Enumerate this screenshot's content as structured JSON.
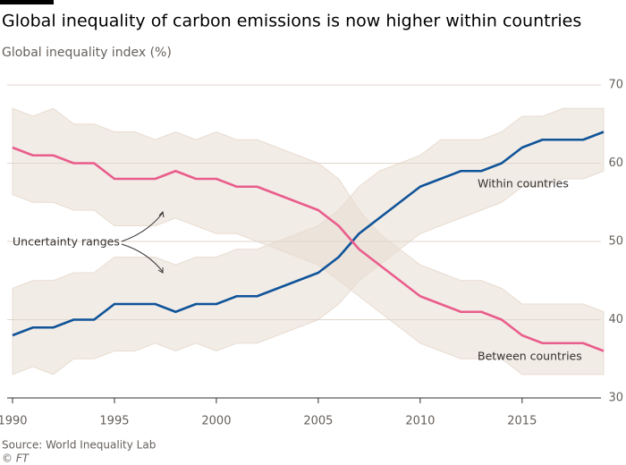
{
  "chart_data": {
    "type": "line",
    "title": "Global inequality of carbon emissions is now higher within countries",
    "subtitle": "Global inequality index (%)",
    "source": "Source: World Inequality Lab",
    "credit": "© FT",
    "annotation": "Uncertainty ranges",
    "x": [
      1990,
      1991,
      1992,
      1993,
      1994,
      1995,
      1996,
      1997,
      1998,
      1999,
      2000,
      2001,
      2002,
      2003,
      2004,
      2005,
      2006,
      2007,
      2008,
      2009,
      2010,
      2011,
      2012,
      2013,
      2014,
      2015,
      2016,
      2017,
      2018,
      2019
    ],
    "xlim": [
      1990,
      2019
    ],
    "xticks": [
      1990,
      1995,
      2000,
      2005,
      2010,
      2015
    ],
    "ylim": [
      30,
      70
    ],
    "yticks": [
      30,
      40,
      50,
      60,
      70
    ],
    "grid": true,
    "series": [
      {
        "name": "Within countries",
        "color": "#0f5499",
        "values": [
          38,
          39,
          39,
          40,
          40,
          42,
          42,
          42,
          41,
          42,
          42,
          43,
          43,
          44,
          45,
          46,
          48,
          51,
          53,
          55,
          57,
          58,
          59,
          59,
          60,
          62,
          63,
          63,
          63,
          64
        ],
        "lower": [
          33,
          34,
          33,
          35,
          35,
          36,
          36,
          37,
          36,
          37,
          36,
          37,
          37,
          38,
          39,
          40,
          42,
          45,
          47,
          49,
          51,
          52,
          53,
          54,
          55,
          57,
          57,
          58,
          58,
          59
        ],
        "upper": [
          44,
          45,
          45,
          46,
          46,
          48,
          48,
          48,
          47,
          48,
          48,
          49,
          49,
          50,
          51,
          52,
          54,
          57,
          59,
          60,
          61,
          63,
          63,
          63,
          64,
          66,
          66,
          67,
          67,
          67
        ]
      },
      {
        "name": "Between countries",
        "color": "#e95d8c",
        "values": [
          62,
          61,
          61,
          60,
          60,
          58,
          58,
          58,
          59,
          58,
          58,
          57,
          57,
          56,
          55,
          54,
          52,
          49,
          47,
          45,
          43,
          42,
          41,
          41,
          40,
          38,
          37,
          37,
          37,
          36
        ],
        "lower": [
          56,
          55,
          55,
          54,
          54,
          52,
          52,
          52,
          53,
          52,
          51,
          51,
          50,
          49,
          48,
          47,
          45,
          43,
          41,
          39,
          37,
          36,
          35,
          35,
          35,
          33,
          33,
          33,
          33,
          33
        ],
        "upper": [
          67,
          66,
          67,
          65,
          65,
          64,
          64,
          63,
          64,
          63,
          64,
          63,
          63,
          62,
          61,
          60,
          58,
          54,
          51,
          49,
          47,
          46,
          45,
          45,
          44,
          42,
          42,
          42,
          42,
          41
        ]
      }
    ],
    "band_color": "#e8dcd1"
  }
}
